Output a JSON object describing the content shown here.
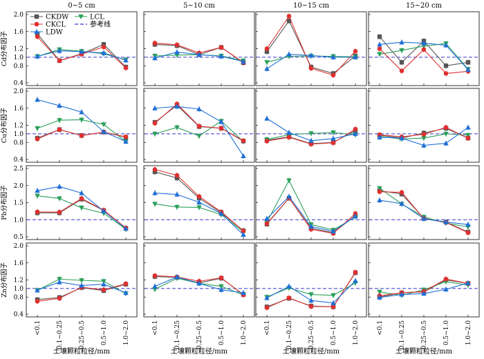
{
  "chart_data": {
    "type": "line",
    "title": "",
    "columns": [
      "0~5 cm",
      "5~10 cm",
      "10~15 cm",
      "15~20 cm"
    ],
    "categories": [
      "<0.1",
      "0.1~0.25",
      "0.25~0.5",
      "0.5~1.0",
      "1.0~2.0"
    ],
    "xlabel": "土壤颗粒粒径/mm",
    "legend": [
      {
        "name": "CKDW",
        "color": "#555555",
        "marker": "square"
      },
      {
        "name": "LCL",
        "color": "#2ca05a",
        "marker": "triangle-down"
      },
      {
        "name": "CKCL",
        "color": "#e03030",
        "marker": "circle"
      },
      {
        "name": "参考线",
        "color": "#3333cc",
        "marker": "dashed"
      },
      {
        "name": "LDW",
        "color": "#1f6fd6",
        "marker": "triangle-up"
      }
    ],
    "legend_position": "top-left",
    "reference_value": 1.0,
    "series_colors": {
      "CKDW": "#555555",
      "CKCL": "#e03030",
      "LCL": "#2ca05a",
      "LDW": "#1f6fd6"
    },
    "rows": [
      {
        "ylabel": "Cd分布因子",
        "ylim": [
          0.4,
          2.0
        ],
        "yticks": [
          0.4,
          0.8,
          1.0,
          1.2,
          1.6,
          2.0
        ],
        "panels": [
          {
            "CKDW": [
              1.55,
              0.92,
              1.08,
              1.3,
              0.77
            ],
            "CKCL": [
              1.48,
              0.92,
              1.07,
              1.24,
              0.75
            ],
            "LCL": [
              1.02,
              1.18,
              1.14,
              1.08,
              0.94
            ],
            "LDW": [
              1.02,
              1.15,
              1.13,
              1.1,
              0.93
            ]
          },
          {
            "CKDW": [
              1.3,
              1.27,
              1.06,
              1.23,
              0.87
            ],
            "CKCL": [
              1.33,
              1.29,
              1.1,
              1.23,
              0.88
            ],
            "LCL": [
              1.03,
              1.05,
              1.06,
              1.03,
              0.92
            ],
            "LDW": [
              0.98,
              1.12,
              1.06,
              1.02,
              0.9
            ]
          },
          {
            "CKDW": [
              1.13,
              1.85,
              0.77,
              0.62,
              1.03
            ],
            "CKCL": [
              1.2,
              1.96,
              0.74,
              0.58,
              1.14
            ],
            "LCL": [
              0.88,
              1.02,
              1.03,
              1.02,
              1.01
            ],
            "LDW": [
              0.73,
              1.07,
              1.04,
              1.0,
              1.0
            ]
          },
          {
            "CKDW": [
              1.48,
              0.88,
              1.38,
              0.8,
              0.88
            ],
            "CKCL": [
              1.2,
              0.68,
              1.18,
              0.62,
              0.67
            ],
            "LCL": [
              1.07,
              1.16,
              1.26,
              1.32,
              0.72
            ],
            "LDW": [
              1.3,
              1.35,
              1.33,
              1.28,
              0.71
            ]
          }
        ]
      },
      {
        "ylabel": "Cu分布因子",
        "ylim": [
          0.4,
          2.0
        ],
        "yticks": [
          0.4,
          0.8,
          1.0,
          1.2,
          1.6,
          2.0
        ],
        "panels": [
          {
            "CKDW": [
              0.9,
              1.1,
              0.96,
              1.04,
              0.92
            ],
            "CKCL": [
              0.88,
              1.1,
              0.96,
              1.04,
              0.93
            ],
            "LCL": [
              1.13,
              1.32,
              1.33,
              1.22,
              0.82
            ],
            "LDW": [
              1.8,
              1.66,
              1.51,
              1.05,
              0.82
            ]
          },
          {
            "CKDW": [
              1.27,
              1.67,
              1.17,
              1.13,
              0.83
            ],
            "CKCL": [
              1.25,
              1.7,
              1.18,
              1.13,
              0.84
            ],
            "LCL": [
              1.0,
              1.15,
              0.95,
              1.3,
              0.82
            ],
            "LDW": [
              1.6,
              1.64,
              1.58,
              1.28,
              0.48
            ]
          },
          {
            "CKDW": [
              0.85,
              0.93,
              0.77,
              0.8,
              1.08
            ],
            "CKCL": [
              0.83,
              0.92,
              0.76,
              0.79,
              1.11
            ],
            "LCL": [
              0.87,
              0.98,
              1.01,
              1.03,
              0.98
            ],
            "LDW": [
              1.36,
              1.03,
              0.84,
              0.89,
              1.0
            ]
          },
          {
            "CKDW": [
              0.97,
              0.9,
              1.02,
              1.13,
              0.9
            ],
            "CKCL": [
              0.98,
              0.93,
              0.99,
              1.15,
              0.9
            ],
            "LCL": [
              0.94,
              0.88,
              0.9,
              1.0,
              0.97
            ],
            "LDW": [
              0.92,
              0.9,
              0.73,
              0.78,
              1.15
            ]
          }
        ]
      },
      {
        "ylabel": "Pb分布因子",
        "ylim": [
          0.5,
          2.5
        ],
        "yticks": [
          0.5,
          1.0,
          1.5,
          2.0,
          2.5
        ],
        "panels": [
          {
            "CKDW": [
              1.2,
              1.2,
              1.6,
              1.27,
              0.75
            ],
            "CKCL": [
              1.23,
              1.22,
              1.62,
              1.28,
              0.76
            ],
            "LCL": [
              1.7,
              1.62,
              1.35,
              1.19,
              0.72
            ],
            "LDW": [
              1.85,
              1.97,
              1.78,
              1.25,
              0.74
            ]
          },
          {
            "CKDW": [
              2.4,
              2.22,
              1.63,
              1.2,
              0.68
            ],
            "CKCL": [
              2.47,
              2.3,
              1.68,
              1.23,
              0.67
            ],
            "LCL": [
              1.46,
              1.37,
              1.36,
              1.15,
              0.65
            ],
            "LDW": [
              1.78,
              1.74,
              1.51,
              1.18,
              0.56
            ]
          },
          {
            "CKDW": [
              0.87,
              1.63,
              0.75,
              0.62,
              1.12
            ],
            "CKCL": [
              0.89,
              1.63,
              0.72,
              0.6,
              1.18
            ],
            "LCL": [
              0.93,
              2.15,
              0.86,
              0.7,
              1.08
            ],
            "LDW": [
              1.03,
              1.68,
              0.8,
              0.66,
              1.1
            ]
          },
          {
            "CKDW": [
              1.85,
              1.75,
              1.04,
              0.93,
              0.64
            ],
            "CKCL": [
              1.82,
              1.8,
              1.03,
              0.92,
              0.62
            ],
            "LCL": [
              1.92,
              1.46,
              1.08,
              0.9,
              0.79
            ],
            "LDW": [
              1.57,
              1.47,
              1.03,
              0.93,
              0.86
            ]
          }
        ]
      },
      {
        "ylabel": "Zn分布因子",
        "ylim": [
          0.4,
          2.0
        ],
        "yticks": [
          0.4,
          0.8,
          1.0,
          1.2,
          1.6,
          2.0
        ],
        "panels": [
          {
            "CKDW": [
              0.74,
              0.79,
              1.02,
              0.95,
              1.1
            ],
            "CKCL": [
              0.7,
              0.77,
              1.03,
              0.97,
              1.11
            ],
            "LCL": [
              0.96,
              1.22,
              1.19,
              1.17,
              0.88
            ],
            "LDW": [
              0.96,
              1.15,
              1.07,
              1.1,
              0.9
            ]
          },
          {
            "CKDW": [
              1.28,
              1.26,
              1.13,
              1.24,
              0.86
            ],
            "CKCL": [
              1.3,
              1.27,
              1.17,
              1.25,
              0.85
            ],
            "LCL": [
              0.98,
              1.24,
              1.12,
              1.05,
              0.85
            ],
            "LDW": [
              1.05,
              1.27,
              1.12,
              0.97,
              0.9
            ]
          },
          {
            "CKDW": [
              0.57,
              0.77,
              0.59,
              0.57,
              1.37
            ],
            "CKCL": [
              0.55,
              0.78,
              0.58,
              0.57,
              1.38
            ],
            "LCL": [
              0.8,
              1.01,
              0.86,
              0.84,
              1.13
            ],
            "LDW": [
              0.78,
              1.05,
              0.72,
              0.66,
              1.18
            ]
          },
          {
            "CKDW": [
              0.8,
              0.9,
              0.92,
              1.2,
              1.12
            ],
            "CKCL": [
              0.83,
              0.9,
              0.93,
              1.22,
              1.12
            ],
            "LCL": [
              0.92,
              0.84,
              0.97,
              1.16,
              1.08
            ],
            "LDW": [
              0.79,
              0.86,
              0.88,
              0.98,
              1.13
            ]
          }
        ]
      }
    ]
  }
}
